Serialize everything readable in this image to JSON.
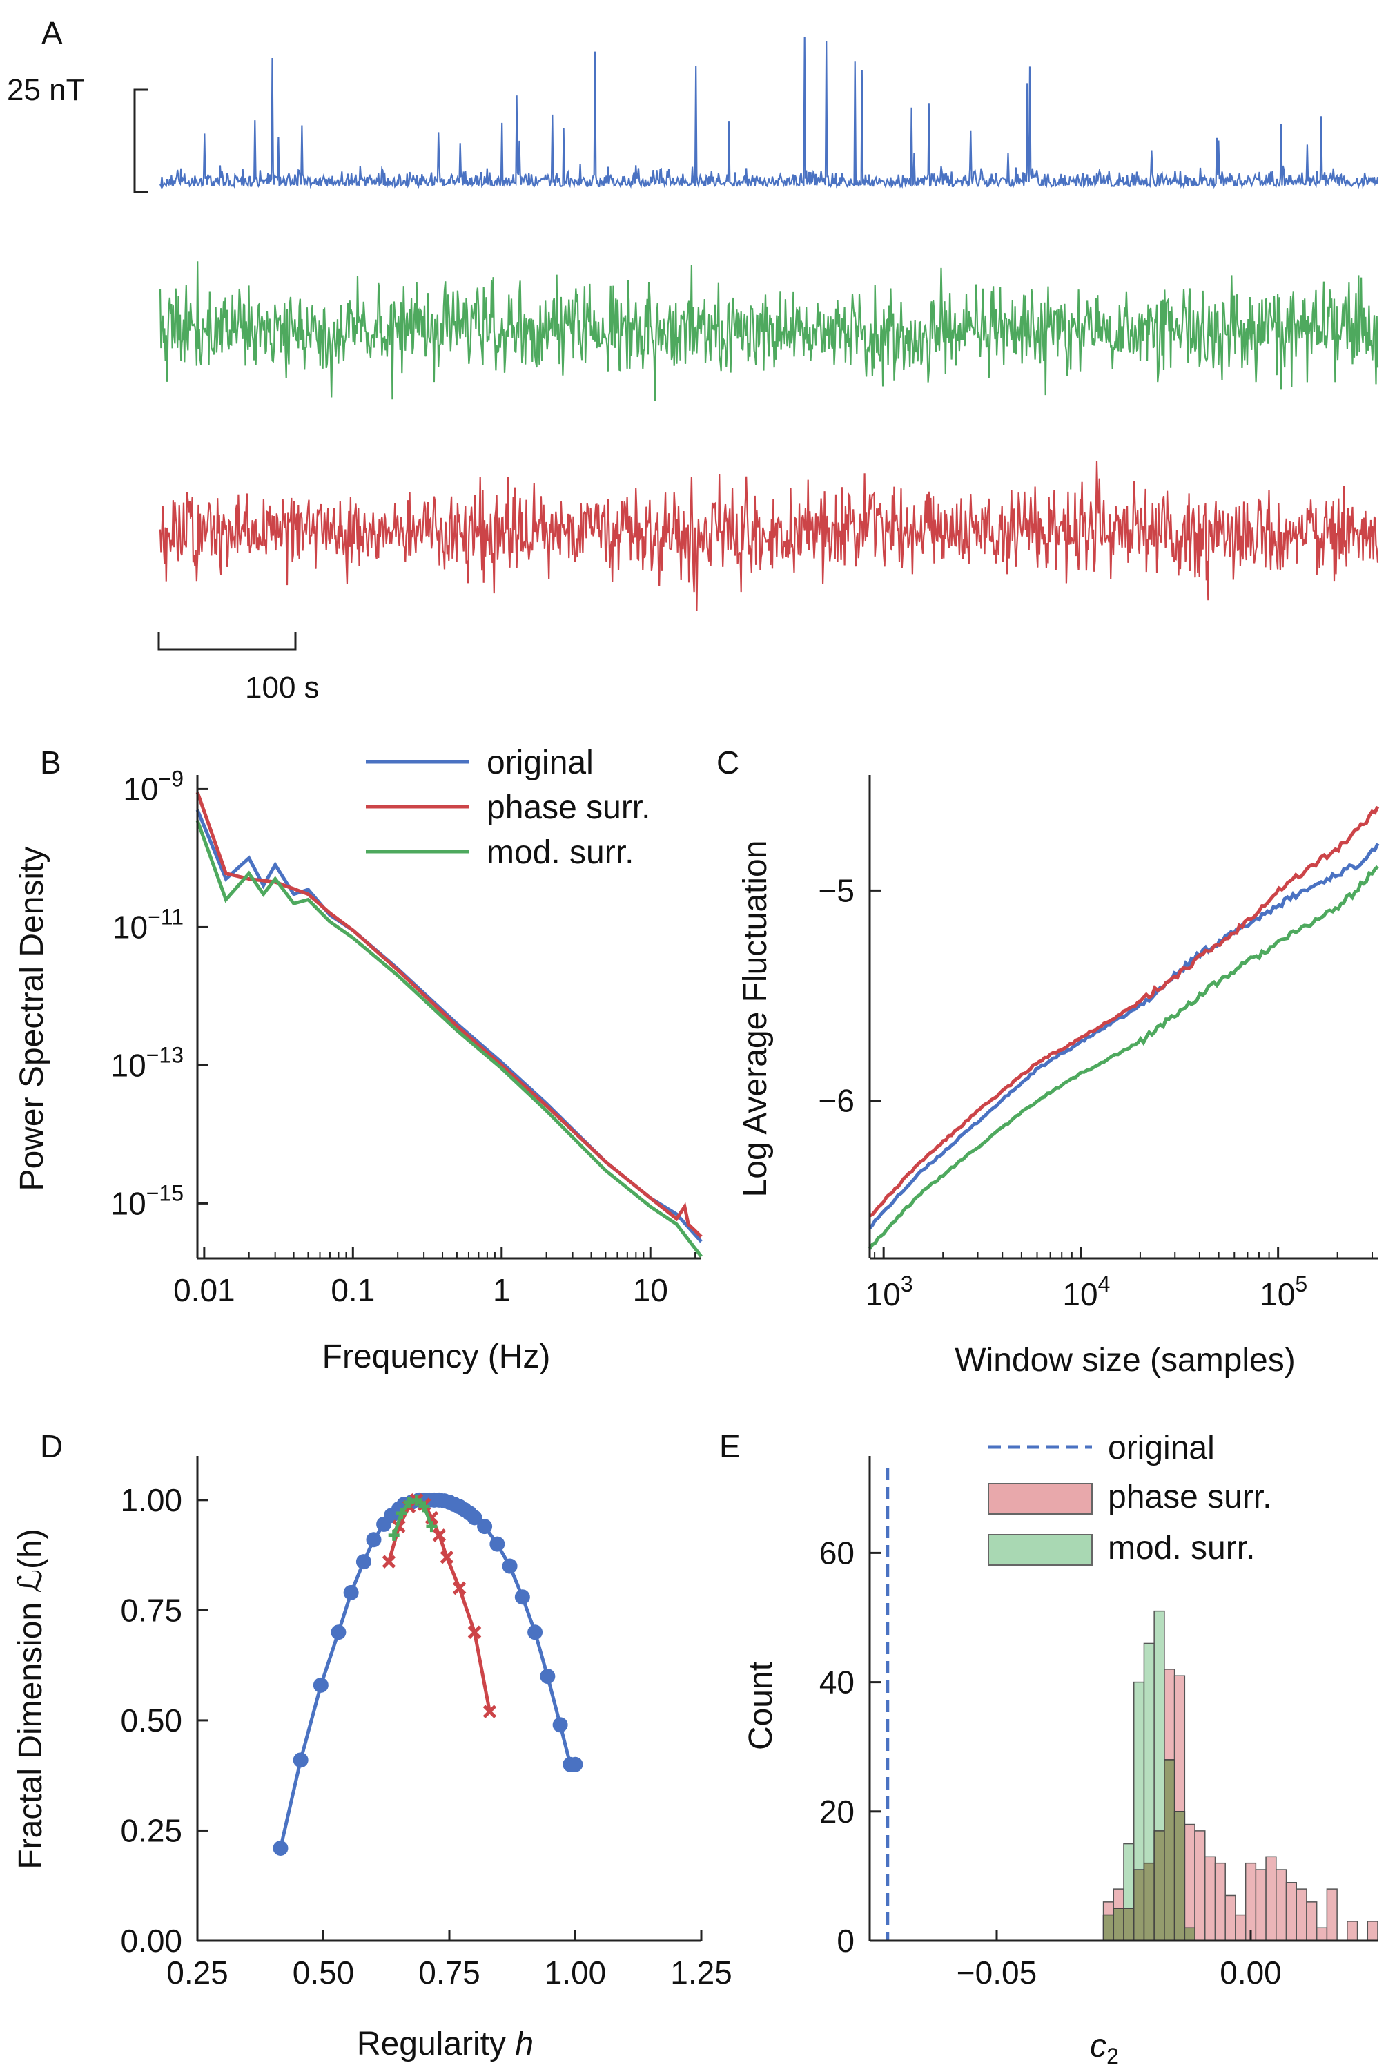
{
  "panel_a": {
    "label": "A",
    "scale_bar_y": "25 nT",
    "scale_bar_x": "100 s",
    "series": [
      {
        "name": "original",
        "color": "#4a72c2"
      },
      {
        "name": "mod. surr.",
        "color": "#4ea95e"
      },
      {
        "name": "phase surr.",
        "color": "#cc4448"
      }
    ]
  },
  "chart_data": [
    {
      "panel": "B",
      "type": "line",
      "xlabel": "Frequency (Hz)",
      "ylabel": "Power Spectral Density",
      "xscale": "log",
      "yscale": "log",
      "xlim": [
        0.009,
        22
      ],
      "ylim": [
        1.6e-16,
        1.6e-09
      ],
      "xticks": [
        {
          "v": 0.01,
          "label": "0.01"
        },
        {
          "v": 0.1,
          "label": "0.1"
        },
        {
          "v": 1,
          "label": "1"
        },
        {
          "v": 10,
          "label": "10"
        }
      ],
      "yticks": [
        {
          "v": 1e-09,
          "base": "10",
          "exp": "−9"
        },
        {
          "v": 1e-11,
          "base": "10",
          "exp": "−11"
        },
        {
          "v": 1e-13,
          "base": "10",
          "exp": "−13"
        },
        {
          "v": 1e-15,
          "base": "10",
          "exp": "−15"
        }
      ],
      "legend": "top-right",
      "series": [
        {
          "name": "original",
          "color": "#4a72c2",
          "x": [
            0.009,
            0.014,
            0.02,
            0.025,
            0.03,
            0.04,
            0.05,
            0.07,
            0.1,
            0.2,
            0.5,
            1,
            2,
            5,
            10,
            15,
            22
          ],
          "y": [
            5e-10,
            5e-11,
            1e-10,
            4e-11,
            8e-11,
            3e-11,
            3.5e-11,
            1.5e-11,
            9e-12,
            2.5e-12,
            4e-13,
            1.1e-13,
            2.8e-14,
            4e-15,
            1.2e-15,
            7e-16,
            2.8e-16
          ]
        },
        {
          "name": "phase surr.",
          "color": "#cc4448",
          "x": [
            0.009,
            0.014,
            0.02,
            0.03,
            0.05,
            0.07,
            0.1,
            0.2,
            0.5,
            1,
            2,
            5,
            10,
            15,
            17,
            18,
            22
          ],
          "y": [
            9e-10,
            6e-11,
            5e-11,
            4.5e-11,
            3e-11,
            1.6e-11,
            9e-12,
            2.4e-12,
            3.7e-13,
            1e-13,
            2.6e-14,
            4e-15,
            1.2e-15,
            6e-16,
            9e-16,
            5e-16,
            3.3e-16
          ]
        },
        {
          "name": "mod. surr.",
          "color": "#4ea95e",
          "x": [
            0.009,
            0.014,
            0.02,
            0.025,
            0.03,
            0.04,
            0.05,
            0.07,
            0.1,
            0.2,
            0.5,
            1,
            2,
            5,
            10,
            15,
            22
          ],
          "y": [
            3.5e-10,
            2.5e-11,
            6e-11,
            3e-11,
            5e-11,
            2.2e-11,
            2.5e-11,
            1.2e-11,
            7e-12,
            2e-12,
            3.2e-13,
            9e-14,
            2.2e-14,
            3e-15,
            9e-16,
            5e-16,
            1.7e-16
          ]
        }
      ]
    },
    {
      "panel": "C",
      "type": "line",
      "xlabel": "Window size (samples)",
      "ylabel": "Log Average Fluctuation",
      "xscale": "log",
      "xlim": [
        850,
        320000
      ],
      "ylim": [
        -6.75,
        -4.45
      ],
      "xticks": [
        {
          "v": 1000,
          "base": "10",
          "exp": "3"
        },
        {
          "v": 10000,
          "base": "10",
          "exp": "4"
        },
        {
          "v": 100000,
          "base": "10",
          "exp": "5"
        }
      ],
      "yticks": [
        {
          "v": -5,
          "label": "−5"
        },
        {
          "v": -6,
          "label": "−6"
        }
      ],
      "series": [
        {
          "name": "original",
          "color": "#4a72c2",
          "x": [
            850,
            1500,
            3000,
            6000,
            10000,
            20000,
            40000,
            60000,
            100000,
            150000,
            200000,
            250000,
            320000
          ],
          "y": [
            -6.6,
            -6.35,
            -6.1,
            -5.85,
            -5.72,
            -5.55,
            -5.3,
            -5.2,
            -5.07,
            -4.98,
            -4.92,
            -4.88,
            -4.78
          ]
        },
        {
          "name": "phase surr.",
          "color": "#cc4448",
          "x": [
            850,
            1500,
            3000,
            6000,
            10000,
            20000,
            40000,
            60000,
            100000,
            150000,
            200000,
            250000,
            320000
          ],
          "y": [
            -6.55,
            -6.3,
            -6.05,
            -5.82,
            -5.7,
            -5.53,
            -5.32,
            -5.2,
            -5.0,
            -4.88,
            -4.8,
            -4.72,
            -4.6
          ]
        },
        {
          "name": "mod. surr.",
          "color": "#4ea95e",
          "x": [
            850,
            1500,
            3000,
            6000,
            10000,
            20000,
            40000,
            60000,
            100000,
            150000,
            200000,
            250000,
            320000
          ],
          "y": [
            -6.7,
            -6.45,
            -6.22,
            -6.0,
            -5.87,
            -5.72,
            -5.5,
            -5.38,
            -5.25,
            -5.15,
            -5.08,
            -5.0,
            -4.88
          ]
        }
      ]
    },
    {
      "panel": "D",
      "type": "scatter",
      "xlabel_main": "Regularity ",
      "xlabel_var": "h",
      "ylabel": "Fractal Dimension ℒ(h)",
      "xlim": [
        0.25,
        1.25
      ],
      "ylim": [
        0.0,
        1.1
      ],
      "xticks": [
        {
          "v": 0.25,
          "label": "0.25"
        },
        {
          "v": 0.5,
          "label": "0.50"
        },
        {
          "v": 0.75,
          "label": "0.75"
        },
        {
          "v": 1.0,
          "label": "1.00"
        },
        {
          "v": 1.25,
          "label": "1.25"
        }
      ],
      "yticks": [
        {
          "v": 0.0,
          "label": "0.00"
        },
        {
          "v": 0.25,
          "label": "0.25"
        },
        {
          "v": 0.5,
          "label": "0.50"
        },
        {
          "v": 0.75,
          "label": "0.75"
        },
        {
          "v": 1.0,
          "label": "1.00"
        }
      ],
      "series": [
        {
          "name": "original",
          "color": "#4a72c2",
          "marker": "circle",
          "x": [
            0.415,
            0.455,
            0.495,
            0.53,
            0.555,
            0.58,
            0.6,
            0.62,
            0.635,
            0.65,
            0.66,
            0.675,
            0.69,
            0.7,
            0.71,
            0.72,
            0.73,
            0.74,
            0.75,
            0.76,
            0.77,
            0.78,
            0.79,
            0.8,
            0.82,
            0.845,
            0.87,
            0.895,
            0.92,
            0.945,
            0.97,
            0.99,
            1.0
          ],
          "y": [
            0.21,
            0.41,
            0.58,
            0.7,
            0.79,
            0.86,
            0.91,
            0.945,
            0.965,
            0.98,
            0.99,
            0.995,
            1.0,
            1.0,
            1.0,
            1.0,
            1.0,
            0.998,
            0.995,
            0.99,
            0.985,
            0.978,
            0.97,
            0.96,
            0.94,
            0.9,
            0.85,
            0.78,
            0.7,
            0.6,
            0.49,
            0.4,
            0.4
          ]
        },
        {
          "name": "phase surr.",
          "color": "#cc4448",
          "marker": "x",
          "x": [
            0.63,
            0.65,
            0.67,
            0.685,
            0.7,
            0.715,
            0.73,
            0.745,
            0.77,
            0.8,
            0.83
          ],
          "y": [
            0.86,
            0.94,
            0.985,
            1.0,
            0.99,
            0.96,
            0.92,
            0.87,
            0.8,
            0.7,
            0.52
          ]
        },
        {
          "name": "mod. surr.",
          "color": "#4ea95e",
          "marker": "plus",
          "x": [
            0.64,
            0.655,
            0.67,
            0.685,
            0.7,
            0.715
          ],
          "y": [
            0.92,
            0.97,
            0.995,
            1.0,
            0.985,
            0.94
          ]
        }
      ]
    },
    {
      "panel": "E",
      "type": "bar",
      "xlabel_base": "c",
      "xlabel_sub": "2",
      "ylabel": "Count",
      "xlim": [
        -0.075,
        0.025
      ],
      "ylim": [
        0,
        75
      ],
      "xticks": [
        {
          "v": -0.05,
          "label": "−0.05"
        },
        {
          "v": 0.0,
          "label": "0.00"
        }
      ],
      "yticks": [
        {
          "v": 0,
          "label": "0"
        },
        {
          "v": 20,
          "label": "20"
        },
        {
          "v": 40,
          "label": "40"
        },
        {
          "v": 60,
          "label": "60"
        }
      ],
      "legend": "top-right",
      "original_line": {
        "name": "original",
        "x": -0.0715,
        "color": "#4a72c2"
      },
      "hist_phase": {
        "name": "phase surr.",
        "color": "#e8a8ab",
        "bin_left": [
          -0.029,
          -0.027,
          -0.025,
          -0.023,
          -0.021,
          -0.019,
          -0.017,
          -0.015,
          -0.013,
          -0.011,
          -0.009,
          -0.007,
          -0.005,
          -0.003,
          -0.001,
          0.001,
          0.003,
          0.005,
          0.007,
          0.009,
          0.011,
          0.013,
          0.015,
          0.017,
          0.019,
          0.021,
          0.023
        ],
        "counts": [
          6,
          8,
          5,
          11,
          12,
          17,
          42,
          41,
          18,
          17,
          13,
          12,
          7,
          4,
          12,
          11,
          13,
          11,
          9,
          8,
          6,
          2,
          8,
          0,
          3,
          0,
          3
        ],
        "bin_width": 0.002
      },
      "hist_mod": {
        "name": "mod. surr.",
        "color": "#a9d8b3",
        "bin_left": [
          -0.029,
          -0.027,
          -0.025,
          -0.023,
          -0.021,
          -0.019,
          -0.017,
          -0.015,
          -0.013
        ],
        "counts": [
          4,
          5,
          15,
          40,
          46,
          51,
          28,
          20,
          2
        ],
        "bin_width": 0.002
      }
    }
  ]
}
